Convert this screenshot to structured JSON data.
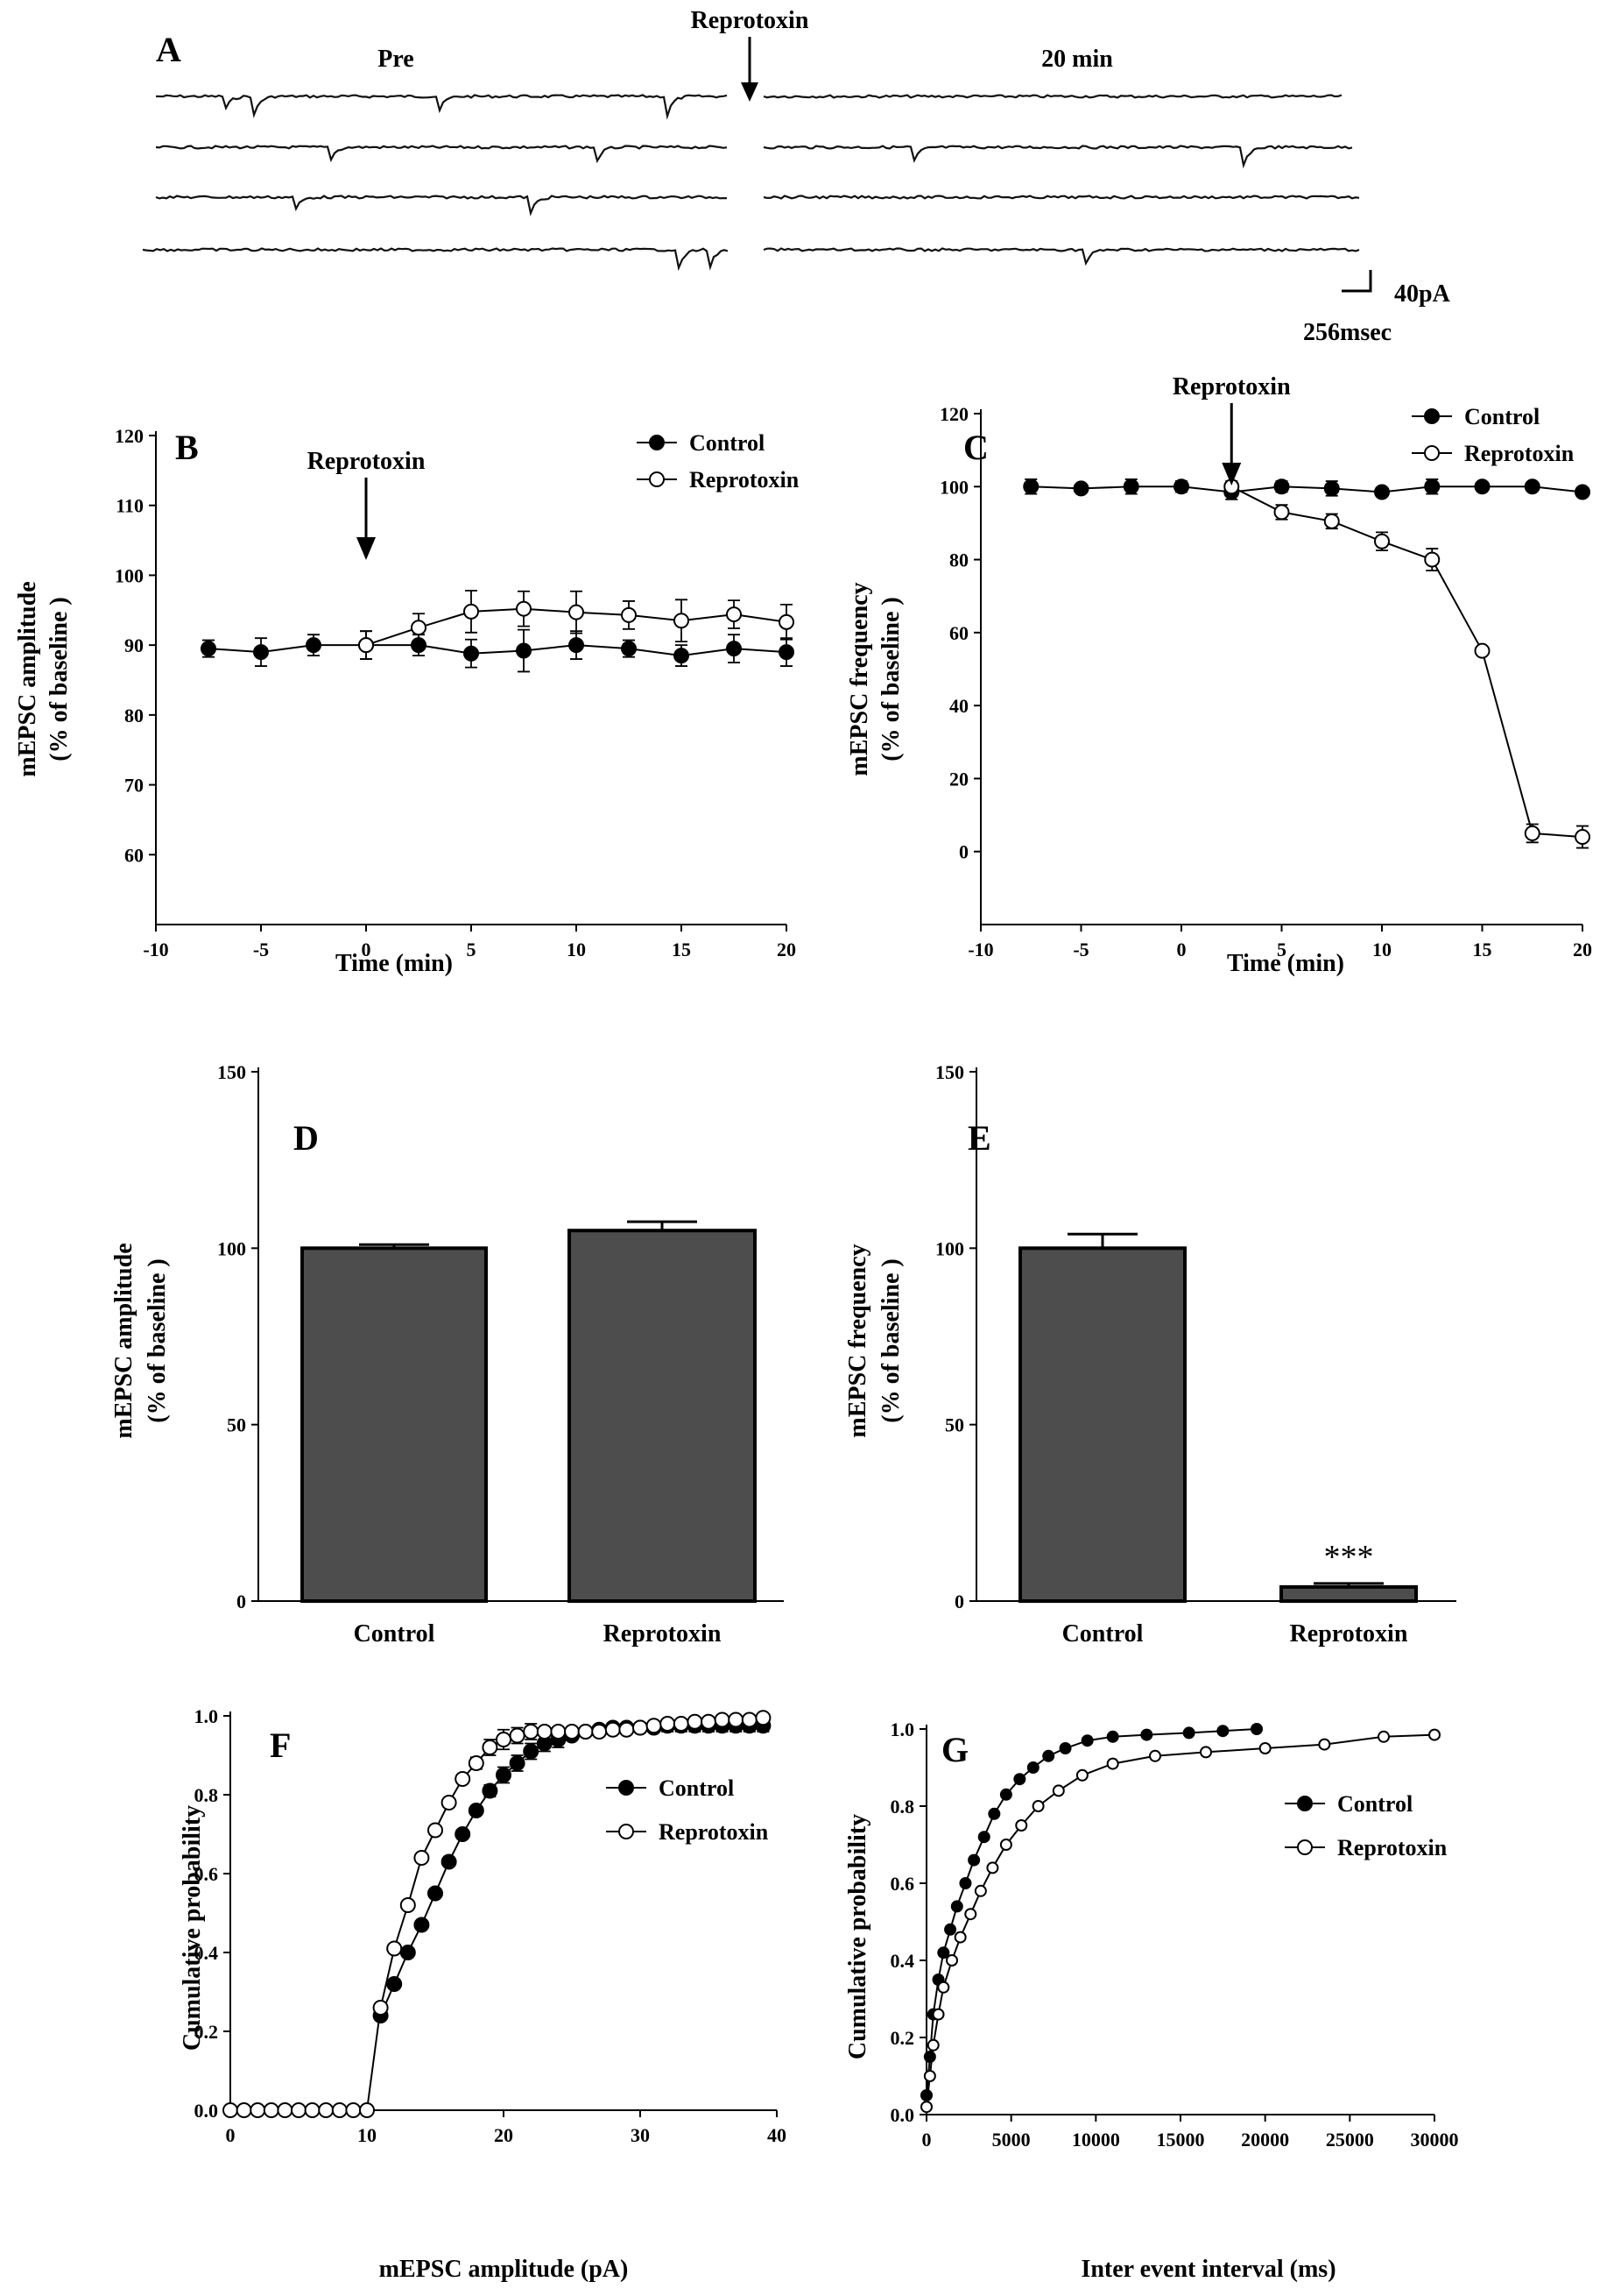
{
  "figure": {
    "panel_a": {
      "letter": "A",
      "pre_label": "Pre",
      "post_label": "20 min",
      "drug_label": "Reprotoxin",
      "scale_y_label": "40pA",
      "scale_x_label": "256msec"
    }
  },
  "chart_data": [
    {
      "id": "B",
      "letter": "B",
      "type": "line",
      "xlabel": "Time (min)",
      "ylabel": [
        "mEPSC amplitude",
        "(% of baseline )"
      ],
      "xlim": [
        -10,
        20
      ],
      "ylim": [
        50,
        120
      ],
      "xticks": [
        -10,
        -5,
        0,
        5,
        10,
        15,
        20
      ],
      "yticks": [
        60,
        70,
        80,
        90,
        100,
        110,
        120
      ],
      "annotation": {
        "text": "Reprotoxin",
        "x": 0
      },
      "legend": "top-right",
      "series": [
        {
          "name": "Control",
          "marker": "filled",
          "x": [
            -7.5,
            -5,
            -2.5,
            0,
            2.5,
            5,
            7.5,
            10,
            12.5,
            15,
            17.5,
            20
          ],
          "y": [
            89.5,
            89,
            90,
            90,
            90,
            88.8,
            89.2,
            90,
            89.5,
            88.5,
            89.5,
            89
          ],
          "err": [
            1.2,
            2,
            1.5,
            2,
            1.5,
            2,
            3,
            2,
            1.2,
            1.5,
            2,
            2
          ]
        },
        {
          "name": "Reprotoxin",
          "marker": "open",
          "x": [
            0,
            2.5,
            5,
            7.5,
            10,
            12.5,
            15,
            17.5,
            20
          ],
          "y": [
            90,
            92.5,
            94.8,
            95.2,
            94.7,
            94.3,
            93.5,
            94.4,
            93.3
          ],
          "err": [
            2,
            2,
            3,
            2.5,
            3,
            2,
            3,
            2,
            2.5
          ]
        }
      ]
    },
    {
      "id": "C",
      "letter": "C",
      "type": "line",
      "xlabel": "Time (min)",
      "ylabel": [
        "mEPSC frequency",
        "(% of baseline )"
      ],
      "xlim": [
        -10,
        20
      ],
      "ylim": [
        -20,
        120
      ],
      "xticks": [
        -10,
        -5,
        0,
        5,
        10,
        15,
        20
      ],
      "yticks": [
        0,
        20,
        40,
        60,
        80,
        100,
        120
      ],
      "annotation": {
        "text": "Reprotoxin",
        "x": 2.5
      },
      "legend": "top-right",
      "series": [
        {
          "name": "Control",
          "marker": "filled",
          "x": [
            -7.5,
            -5,
            -2.5,
            0,
            2.5,
            5,
            7.5,
            10,
            12.5,
            15,
            17.5,
            20
          ],
          "y": [
            100,
            99.5,
            100,
            100,
            98.5,
            100,
            99.5,
            98.5,
            100,
            100,
            100,
            98.5
          ],
          "err": [
            2,
            1,
            2,
            1.5,
            2,
            1.5,
            2,
            1,
            2,
            1,
            1,
            1
          ]
        },
        {
          "name": "Reprotoxin",
          "marker": "open",
          "x": [
            2.5,
            5,
            7.5,
            10,
            12.5,
            15,
            17.5,
            20
          ],
          "y": [
            100,
            93,
            90.5,
            85,
            80,
            55,
            5,
            4
          ],
          "err": [
            1.5,
            2,
            2,
            2.5,
            3,
            1,
            2.5,
            3
          ]
        }
      ]
    },
    {
      "id": "D",
      "letter": "D",
      "type": "bar",
      "ylabel": [
        "mEPSC amplitude",
        "(% of baseline )"
      ],
      "ylim": [
        0,
        150
      ],
      "yticks": [
        0,
        50,
        100,
        150
      ],
      "categories": [
        "Control",
        "Reprotoxin"
      ],
      "values": [
        100,
        105
      ],
      "err": [
        1,
        2.5
      ]
    },
    {
      "id": "E",
      "letter": "E",
      "type": "bar",
      "ylabel": [
        "mEPSC frequency",
        "(% of baseline )"
      ],
      "ylim": [
        0,
        150
      ],
      "yticks": [
        0,
        50,
        100,
        150
      ],
      "categories": [
        "Control",
        "Reprotoxin"
      ],
      "values": [
        100,
        4
      ],
      "err": [
        4,
        1
      ],
      "significance": {
        "text": "***",
        "category": "Reprotoxin"
      }
    },
    {
      "id": "F",
      "letter": "F",
      "type": "line",
      "xlabel": "mEPSC amplitude (pA)",
      "ylabel": [
        "Cumulative probability"
      ],
      "xlim": [
        0,
        40
      ],
      "ylim": [
        0,
        1
      ],
      "xticks": [
        0,
        10,
        20,
        30,
        40
      ],
      "yticks": [
        0.0,
        0.2,
        0.4,
        0.6,
        0.8,
        1.0
      ],
      "ytick_labels": [
        "0.0",
        "0.2",
        "0.4",
        "0.6",
        "0.8",
        "1.0"
      ],
      "legend": "right",
      "series": [
        {
          "name": "Control",
          "marker": "filled",
          "x": [
            11,
            12,
            13,
            14,
            15,
            16,
            17,
            18,
            19,
            20,
            21,
            22,
            23,
            24,
            25,
            26,
            27,
            28,
            29,
            30,
            31,
            32,
            33,
            34,
            35,
            36,
            37,
            38,
            39
          ],
          "y": [
            0.24,
            0.32,
            0.4,
            0.47,
            0.55,
            0.63,
            0.7,
            0.76,
            0.81,
            0.85,
            0.88,
            0.91,
            0.93,
            0.94,
            0.95,
            0.96,
            0.965,
            0.97,
            0.97,
            0.97,
            0.97,
            0.975,
            0.975,
            0.975,
            0.975,
            0.975,
            0.975,
            0.975,
            0.975
          ],
          "err": [
            0,
            0,
            0,
            0,
            0,
            0,
            0,
            0.01,
            0.015,
            0.02,
            0.02,
            0.02,
            0.02,
            0.02,
            0.01,
            0.01,
            0.01,
            0.01,
            0.01,
            0.01,
            0.01,
            0.015,
            0.015,
            0.015,
            0.015,
            0.015,
            0.015,
            0.015,
            0.015
          ]
        },
        {
          "name": "Reprotoxin",
          "marker": "open",
          "x": [
            0,
            1,
            2,
            3,
            4,
            5,
            6,
            7,
            8,
            9,
            10,
            11,
            12,
            13,
            14,
            15,
            16,
            17,
            18,
            19,
            20,
            21,
            22,
            23,
            24,
            25,
            26,
            27,
            28,
            29,
            30,
            31,
            32,
            33,
            34,
            35,
            36,
            37,
            38,
            39
          ],
          "y": [
            0,
            0,
            0,
            0,
            0,
            0,
            0,
            0,
            0,
            0,
            0,
            0.26,
            0.41,
            0.52,
            0.64,
            0.71,
            0.78,
            0.84,
            0.88,
            0.92,
            0.94,
            0.95,
            0.96,
            0.96,
            0.96,
            0.96,
            0.96,
            0.96,
            0.965,
            0.965,
            0.97,
            0.975,
            0.98,
            0.98,
            0.985,
            0.985,
            0.99,
            0.99,
            0.99,
            0.995
          ],
          "err": [
            0,
            0,
            0,
            0,
            0,
            0,
            0,
            0,
            0,
            0,
            0,
            0,
            0,
            0,
            0,
            0,
            0.01,
            0.01,
            0.015,
            0.02,
            0.025,
            0.02,
            0.02,
            0.01,
            0.01,
            0.01,
            0.01,
            0.01,
            0.01,
            0.01,
            0.01,
            0.01,
            0.01,
            0.01,
            0.01,
            0.01,
            0.01,
            0.01,
            0.01,
            0.01
          ]
        }
      ]
    },
    {
      "id": "G",
      "letter": "G",
      "type": "line",
      "xlabel": "Inter event interval (ms)",
      "ylabel": [
        "Cumulative probability"
      ],
      "xlim": [
        0,
        30000
      ],
      "ylim": [
        0,
        1
      ],
      "xticks": [
        0,
        5000,
        10000,
        15000,
        20000,
        25000,
        30000
      ],
      "yticks": [
        0.0,
        0.2,
        0.4,
        0.6,
        0.8,
        1.0
      ],
      "ytick_labels": [
        "0.0",
        "0.2",
        "0.4",
        "0.6",
        "0.8",
        "1.0"
      ],
      "legend": "right",
      "series": [
        {
          "name": "Control",
          "marker": "filled",
          "dense": true,
          "x": [
            0,
            200,
            400,
            700,
            1000,
            1400,
            1800,
            2300,
            2800,
            3400,
            4000,
            4700,
            5500,
            6300,
            7200,
            8200,
            9500,
            11000,
            13000,
            15500,
            17500,
            19500
          ],
          "y": [
            0.05,
            0.15,
            0.26,
            0.35,
            0.42,
            0.48,
            0.54,
            0.6,
            0.66,
            0.72,
            0.78,
            0.83,
            0.87,
            0.9,
            0.93,
            0.95,
            0.97,
            0.98,
            0.985,
            0.99,
            0.995,
            1.0
          ]
        },
        {
          "name": "Reprotoxin",
          "marker": "open",
          "dense": true,
          "x": [
            0,
            200,
            400,
            700,
            1000,
            1500,
            2000,
            2600,
            3200,
            3900,
            4700,
            5600,
            6600,
            7800,
            9200,
            11000,
            13500,
            16500,
            20000,
            23500,
            27000,
            30000
          ],
          "y": [
            0.02,
            0.1,
            0.18,
            0.26,
            0.33,
            0.4,
            0.46,
            0.52,
            0.58,
            0.64,
            0.7,
            0.75,
            0.8,
            0.84,
            0.88,
            0.91,
            0.93,
            0.94,
            0.95,
            0.96,
            0.98,
            0.985
          ]
        }
      ]
    }
  ]
}
